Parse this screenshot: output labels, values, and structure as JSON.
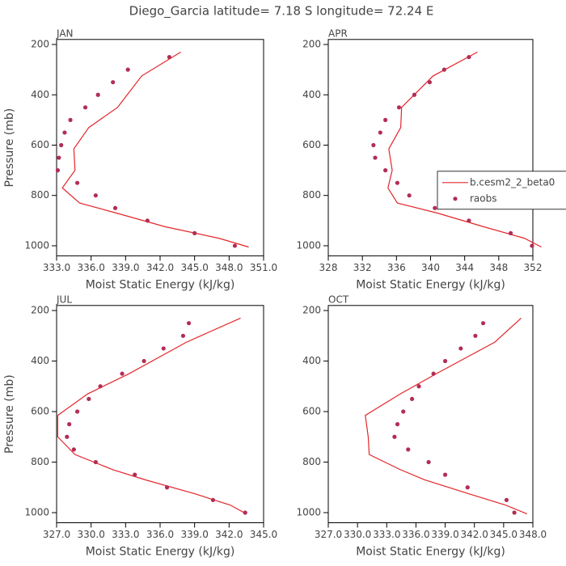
{
  "title": "Diego_Garcia  latitude= 7.18 S longitude= 72.24 E",
  "chart_data": [
    {
      "type": "line",
      "title": "JAN",
      "xlabel": "Moist Static Energy (kJ/kg)",
      "ylabel": "Pressure (mb)",
      "xlim": [
        333,
        351
      ],
      "xticks": [
        {
          "value": 333,
          "label": "333.0"
        },
        {
          "value": 336,
          "label": "336.0"
        },
        {
          "value": 339,
          "label": "339.0"
        },
        {
          "value": 342,
          "label": "342.0"
        },
        {
          "value": 345,
          "label": "345.0"
        },
        {
          "value": 348,
          "label": "348.0"
        },
        {
          "value": 351,
          "label": "351.0"
        }
      ],
      "ylim": [
        1040,
        180
      ],
      "yticks": [
        200,
        400,
        600,
        800,
        1000
      ],
      "legend": false,
      "series": [
        {
          "color": "#e3262b",
          "style": "line",
          "x": [
            343.8,
            340.4,
            338.3,
            335.8,
            334.5,
            334.6,
            333.5,
            335.0,
            338.2,
            342.5,
            347.1,
            349.7
          ],
          "y": [
            230,
            325,
            450,
            530,
            615,
            700,
            770,
            830,
            870,
            925,
            970,
            1005
          ]
        },
        {
          "color": "#b22d55",
          "style": "markers",
          "x": [
            342.8,
            339.2,
            337.9,
            336.6,
            335.5,
            334.2,
            333.7,
            333.4,
            333.2,
            333.1,
            334.8,
            336.4,
            338.1,
            340.9,
            345.0,
            348.5
          ],
          "y": [
            250,
            300,
            350,
            400,
            450,
            500,
            550,
            600,
            650,
            700,
            750,
            800,
            850,
            900,
            950,
            1000
          ]
        }
      ]
    },
    {
      "type": "line",
      "title": "APR",
      "xlabel": "Moist Static Energy (kJ/kg)",
      "xlim": [
        328,
        352
      ],
      "xticks": [
        328,
        332,
        336,
        340,
        344,
        348,
        352
      ],
      "ylim": [
        1040,
        180
      ],
      "yticks": [
        200,
        400,
        600,
        800,
        1000
      ],
      "legend": true,
      "series": [
        {
          "name": "b.cesm2_2_beta0",
          "color": "#e3262b",
          "style": "line",
          "x": [
            345.5,
            340.3,
            336.6,
            336.5,
            335.1,
            335.5,
            335.0,
            336.1,
            340.8,
            346.3,
            351.0,
            353.0
          ],
          "y": [
            230,
            325,
            450,
            530,
            615,
            700,
            770,
            830,
            870,
            925,
            970,
            1005
          ]
        },
        {
          "name": "raobs",
          "color": "#b22d55",
          "style": "markers",
          "x": [
            344.5,
            341.6,
            339.9,
            338.1,
            336.3,
            334.7,
            334.1,
            333.3,
            333.5,
            334.7,
            336.1,
            337.5,
            340.5,
            344.5,
            349.4,
            351.9
          ],
          "y": [
            250,
            300,
            350,
            400,
            450,
            500,
            550,
            600,
            650,
            700,
            750,
            800,
            850,
            900,
            950,
            1000
          ]
        }
      ]
    },
    {
      "type": "line",
      "title": "JUL",
      "xlabel": "Moist Static Energy (kJ/kg)",
      "ylabel": "Pressure (mb)",
      "xlim": [
        327,
        345
      ],
      "xticks": [
        {
          "value": 327,
          "label": "327.0"
        },
        {
          "value": 330,
          "label": "330.0"
        },
        {
          "value": 333,
          "label": "333.0"
        },
        {
          "value": 336,
          "label": "336.0"
        },
        {
          "value": 339,
          "label": "339.0"
        },
        {
          "value": 342,
          "label": "342.0"
        },
        {
          "value": 345,
          "label": "345.0"
        }
      ],
      "ylim": [
        1040,
        180
      ],
      "yticks": [
        200,
        400,
        600,
        800,
        1000
      ],
      "legend": false,
      "series": [
        {
          "color": "#e3262b",
          "style": "line",
          "x": [
            343.0,
            338.3,
            333.3,
            329.7,
            327.1,
            327.1,
            328.6,
            331.9,
            334.7,
            339.0,
            342.1,
            343.5
          ],
          "y": [
            230,
            325,
            450,
            530,
            615,
            700,
            770,
            830,
            870,
            925,
            970,
            1005
          ]
        },
        {
          "color": "#b22d55",
          "style": "markers",
          "x": [
            338.5,
            338.0,
            336.3,
            334.6,
            332.7,
            330.8,
            329.8,
            328.8,
            328.1,
            327.9,
            328.5,
            330.4,
            333.8,
            336.6,
            340.6,
            343.4
          ],
          "y": [
            250,
            300,
            350,
            400,
            450,
            500,
            550,
            600,
            650,
            700,
            750,
            800,
            850,
            900,
            950,
            1000
          ]
        }
      ]
    },
    {
      "type": "line",
      "title": "OCT",
      "xlabel": "Moist Static Energy (kJ/kg)",
      "xlim": [
        327,
        348
      ],
      "xticks": [
        {
          "value": 327,
          "label": "327.0"
        },
        {
          "value": 330,
          "label": "330.0"
        },
        {
          "value": 333,
          "label": "333.0"
        },
        {
          "value": 336,
          "label": "336.0"
        },
        {
          "value": 339,
          "label": "339.0"
        },
        {
          "value": 342,
          "label": "342.0"
        },
        {
          "value": 345,
          "label": "345.0"
        },
        {
          "value": 348,
          "label": "348.0"
        }
      ],
      "ylim": [
        1040,
        180
      ],
      "yticks": [
        200,
        400,
        600,
        800,
        1000
      ],
      "legend": false,
      "series": [
        {
          "color": "#e3262b",
          "style": "line",
          "x": [
            346.8,
            344.1,
            338.1,
            334.4,
            330.8,
            331.1,
            331.2,
            334.4,
            336.9,
            341.4,
            345.2,
            347.4
          ],
          "y": [
            230,
            325,
            450,
            530,
            615,
            700,
            770,
            830,
            870,
            925,
            970,
            1005
          ]
        },
        {
          "color": "#b22d55",
          "style": "markers",
          "x": [
            342.9,
            342.1,
            340.6,
            339.0,
            337.8,
            336.3,
            335.6,
            334.7,
            334.1,
            333.8,
            335.2,
            337.3,
            339.0,
            341.3,
            345.3,
            346.1
          ],
          "y": [
            250,
            300,
            350,
            400,
            450,
            500,
            550,
            600,
            650,
            700,
            750,
            800,
            850,
            900,
            950,
            1000
          ]
        }
      ]
    }
  ]
}
